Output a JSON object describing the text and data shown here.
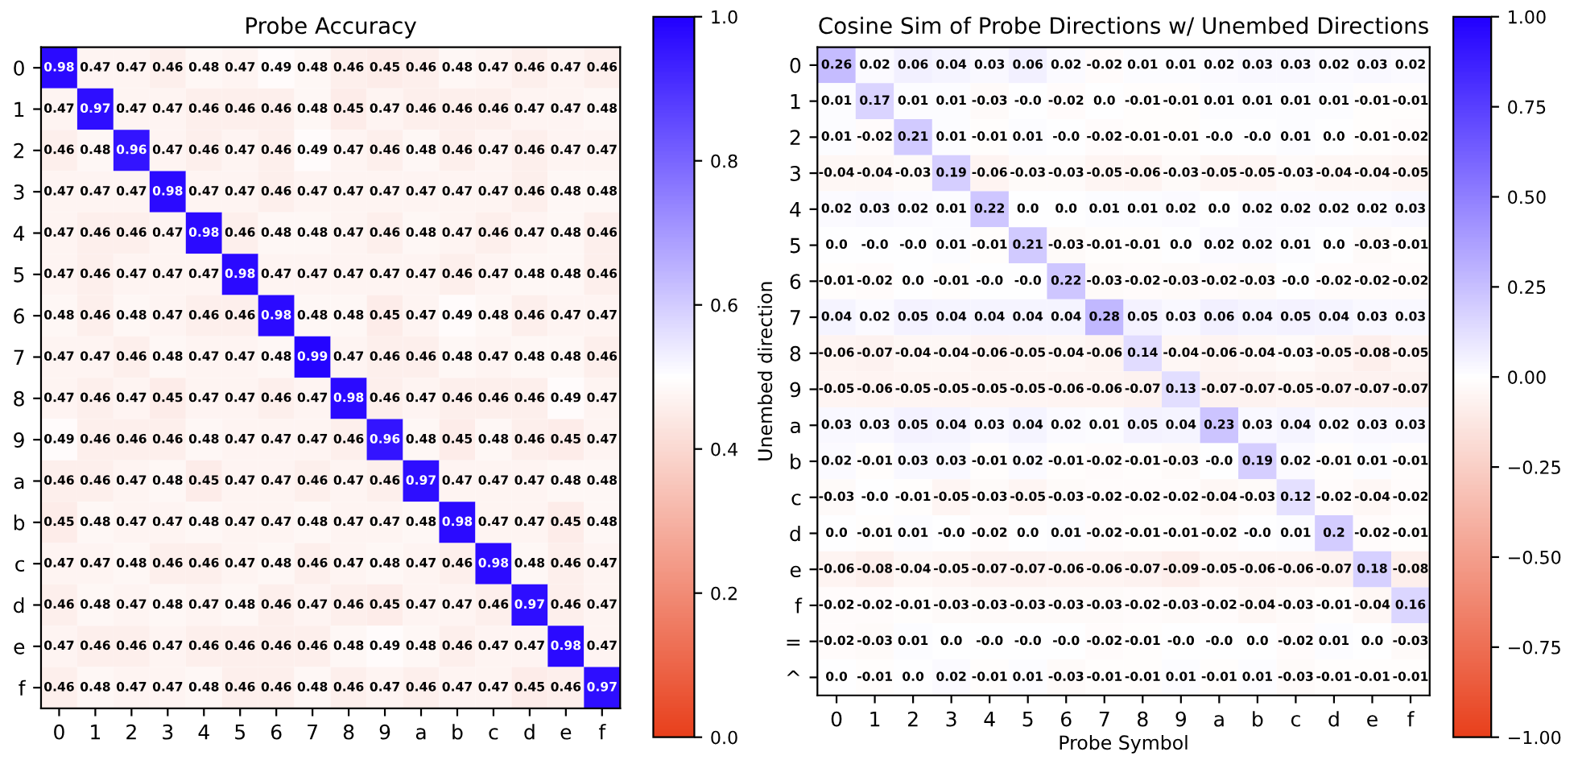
{
  "chart_data": [
    {
      "type": "heatmap",
      "title": "Probe Accuracy",
      "categories": [
        "0",
        "1",
        "2",
        "3",
        "4",
        "5",
        "6",
        "7",
        "8",
        "9",
        "a",
        "b",
        "c",
        "d",
        "e",
        "f"
      ],
      "y_categories": [
        "0",
        "1",
        "2",
        "3",
        "4",
        "5",
        "6",
        "7",
        "8",
        "9",
        "a",
        "b",
        "c",
        "d",
        "e",
        "f"
      ],
      "cells": [
        [
          0.98,
          0.47,
          0.47,
          0.46,
          0.48,
          0.47,
          0.49,
          0.48,
          0.46,
          0.45,
          0.46,
          0.48,
          0.47,
          0.46,
          0.47,
          0.46
        ],
        [
          0.47,
          0.97,
          0.47,
          0.47,
          0.46,
          0.46,
          0.46,
          0.48,
          0.45,
          0.47,
          0.46,
          0.46,
          0.46,
          0.47,
          0.47,
          0.48
        ],
        [
          0.46,
          0.48,
          0.96,
          0.47,
          0.46,
          0.47,
          0.46,
          0.49,
          0.47,
          0.46,
          0.48,
          0.46,
          0.47,
          0.46,
          0.47,
          0.47
        ],
        [
          0.47,
          0.47,
          0.47,
          0.98,
          0.47,
          0.47,
          0.46,
          0.47,
          0.47,
          0.47,
          0.47,
          0.47,
          0.47,
          0.46,
          0.48,
          0.48
        ],
        [
          0.47,
          0.46,
          0.46,
          0.47,
          0.98,
          0.46,
          0.48,
          0.48,
          0.47,
          0.46,
          0.48,
          0.47,
          0.46,
          0.47,
          0.48,
          0.46
        ],
        [
          0.47,
          0.46,
          0.47,
          0.47,
          0.47,
          0.98,
          0.47,
          0.47,
          0.47,
          0.47,
          0.47,
          0.46,
          0.47,
          0.48,
          0.48,
          0.46
        ],
        [
          0.48,
          0.46,
          0.48,
          0.47,
          0.46,
          0.46,
          0.98,
          0.48,
          0.48,
          0.45,
          0.47,
          0.49,
          0.48,
          0.46,
          0.47,
          0.47
        ],
        [
          0.47,
          0.47,
          0.46,
          0.48,
          0.47,
          0.47,
          0.48,
          0.99,
          0.47,
          0.46,
          0.46,
          0.48,
          0.47,
          0.48,
          0.48,
          0.46
        ],
        [
          0.47,
          0.46,
          0.47,
          0.45,
          0.47,
          0.47,
          0.46,
          0.47,
          0.98,
          0.46,
          0.47,
          0.46,
          0.46,
          0.46,
          0.49,
          0.47
        ],
        [
          0.49,
          0.46,
          0.46,
          0.46,
          0.48,
          0.47,
          0.47,
          0.47,
          0.46,
          0.96,
          0.48,
          0.45,
          0.48,
          0.46,
          0.45,
          0.47
        ],
        [
          0.46,
          0.46,
          0.47,
          0.48,
          0.45,
          0.47,
          0.47,
          0.46,
          0.47,
          0.46,
          0.97,
          0.47,
          0.47,
          0.47,
          0.48,
          0.48
        ],
        [
          0.45,
          0.48,
          0.47,
          0.47,
          0.48,
          0.47,
          0.47,
          0.48,
          0.47,
          0.47,
          0.48,
          0.98,
          0.47,
          0.47,
          0.45,
          0.48
        ],
        [
          0.47,
          0.47,
          0.48,
          0.46,
          0.46,
          0.47,
          0.48,
          0.46,
          0.47,
          0.48,
          0.47,
          0.46,
          0.98,
          0.48,
          0.46,
          0.47
        ],
        [
          0.46,
          0.48,
          0.47,
          0.48,
          0.47,
          0.48,
          0.46,
          0.47,
          0.46,
          0.45,
          0.47,
          0.47,
          0.46,
          0.97,
          0.46,
          0.47
        ],
        [
          0.47,
          0.46,
          0.46,
          0.47,
          0.46,
          0.46,
          0.46,
          0.46,
          0.48,
          0.49,
          0.48,
          0.46,
          0.47,
          0.47,
          0.98,
          0.47
        ],
        [
          0.46,
          0.48,
          0.47,
          0.47,
          0.48,
          0.46,
          0.46,
          0.48,
          0.46,
          0.47,
          0.46,
          0.47,
          0.47,
          0.45,
          0.46,
          0.97
        ]
      ],
      "data_labels": true,
      "clim": [
        0,
        1
      ],
      "cticks": [
        {
          "value": 0,
          "label": "0.0"
        },
        {
          "value": 0.2,
          "label": "0.2"
        },
        {
          "value": 0.4,
          "label": "0.4"
        },
        {
          "value": 0.6,
          "label": "0.6"
        },
        {
          "value": 0.8,
          "label": "0.8"
        },
        {
          "value": 1,
          "label": "1.0"
        }
      ]
    },
    {
      "type": "heatmap",
      "title": "Cosine Sim of Probe Directions w/ Unembed Directions",
      "xlabel": "Probe Symbol",
      "ylabel": "Unembed direction",
      "categories": [
        "0",
        "1",
        "2",
        "3",
        "4",
        "5",
        "6",
        "7",
        "8",
        "9",
        "a",
        "b",
        "c",
        "d",
        "e",
        "f"
      ],
      "y_categories": [
        "0",
        "1",
        "2",
        "3",
        "4",
        "5",
        "6",
        "7",
        "8",
        "9",
        "a",
        "b",
        "c",
        "d",
        "e",
        "f",
        "=",
        "^"
      ],
      "cells": [
        [
          0.26,
          0.02,
          0.06,
          0.04,
          0.03,
          0.06,
          0.02,
          -0.02,
          0.01,
          0.01,
          0.02,
          0.03,
          0.03,
          0.02,
          0.03,
          0.02
        ],
        [
          0.01,
          0.17,
          0.01,
          0.01,
          -0.03,
          -0.0,
          -0.02,
          0.0,
          -0.01,
          -0.01,
          0.01,
          0.01,
          0.01,
          0.01,
          -0.01,
          -0.01
        ],
        [
          0.01,
          -0.02,
          0.21,
          0.01,
          -0.01,
          0.01,
          -0.0,
          -0.02,
          -0.01,
          -0.01,
          -0.0,
          -0.0,
          0.01,
          0.0,
          -0.01,
          -0.02
        ],
        [
          -0.04,
          -0.04,
          -0.03,
          0.19,
          -0.06,
          -0.03,
          -0.03,
          -0.05,
          -0.06,
          -0.03,
          -0.05,
          -0.05,
          -0.03,
          -0.04,
          -0.04,
          -0.05
        ],
        [
          0.02,
          0.03,
          0.02,
          0.01,
          0.22,
          0.0,
          0.0,
          0.01,
          0.01,
          0.02,
          0.0,
          0.02,
          0.02,
          0.02,
          0.02,
          0.03
        ],
        [
          0.0,
          -0.0,
          -0.0,
          0.01,
          -0.01,
          0.21,
          -0.03,
          -0.01,
          -0.01,
          0.0,
          0.02,
          0.02,
          0.01,
          0.0,
          -0.03,
          -0.01
        ],
        [
          -0.01,
          -0.02,
          0.0,
          -0.01,
          -0.0,
          -0.0,
          0.22,
          -0.03,
          -0.02,
          -0.03,
          -0.02,
          -0.03,
          -0.0,
          -0.02,
          -0.02,
          -0.02
        ],
        [
          0.04,
          0.02,
          0.05,
          0.04,
          0.04,
          0.04,
          0.04,
          0.28,
          0.05,
          0.03,
          0.06,
          0.04,
          0.05,
          0.04,
          0.03,
          0.03
        ],
        [
          -0.06,
          -0.07,
          -0.04,
          -0.04,
          -0.06,
          -0.05,
          -0.04,
          -0.06,
          0.14,
          -0.04,
          -0.06,
          -0.04,
          -0.03,
          -0.05,
          -0.08,
          -0.05
        ],
        [
          -0.05,
          -0.06,
          -0.05,
          -0.05,
          -0.05,
          -0.05,
          -0.06,
          -0.06,
          -0.07,
          0.13,
          -0.07,
          -0.07,
          -0.05,
          -0.07,
          -0.07,
          -0.07
        ],
        [
          0.03,
          0.03,
          0.05,
          0.04,
          0.03,
          0.04,
          0.02,
          0.01,
          0.05,
          0.04,
          0.23,
          0.03,
          0.04,
          0.02,
          0.03,
          0.03
        ],
        [
          0.02,
          -0.01,
          0.03,
          0.03,
          -0.01,
          0.02,
          -0.01,
          -0.02,
          -0.01,
          -0.03,
          -0.0,
          0.19,
          0.02,
          -0.01,
          0.01,
          -0.01
        ],
        [
          -0.03,
          -0.0,
          -0.01,
          -0.05,
          -0.03,
          -0.05,
          -0.03,
          -0.02,
          -0.02,
          -0.02,
          -0.04,
          -0.03,
          0.12,
          -0.02,
          -0.04,
          -0.02
        ],
        [
          0.0,
          -0.01,
          0.01,
          -0.0,
          -0.02,
          0.0,
          0.01,
          -0.02,
          -0.01,
          -0.01,
          -0.02,
          -0.0,
          0.01,
          0.2,
          -0.02,
          -0.01
        ],
        [
          -0.06,
          -0.08,
          -0.04,
          -0.05,
          -0.07,
          -0.07,
          -0.06,
          -0.06,
          -0.07,
          -0.09,
          -0.05,
          -0.06,
          -0.06,
          -0.07,
          0.18,
          -0.08
        ],
        [
          -0.02,
          -0.02,
          -0.01,
          -0.03,
          -0.03,
          -0.03,
          -0.03,
          -0.03,
          -0.02,
          -0.03,
          -0.02,
          -0.04,
          -0.03,
          -0.01,
          -0.04,
          0.16
        ],
        [
          -0.02,
          -0.03,
          0.01,
          0.0,
          -0.0,
          -0.0,
          -0.0,
          -0.02,
          -0.01,
          -0.0,
          -0.0,
          0.0,
          -0.02,
          0.01,
          0.0,
          -0.03
        ],
        [
          0.0,
          -0.01,
          0.0,
          0.02,
          -0.01,
          0.01,
          -0.03,
          -0.01,
          -0.01,
          0.01,
          -0.01,
          0.01,
          -0.03,
          -0.01,
          -0.01,
          -0.01
        ]
      ],
      "cell_labels": [
        [
          "0.26",
          "0.02",
          "0.06",
          "0.04",
          "0.03",
          "0.06",
          "0.02",
          "-0.02",
          "0.01",
          "0.01",
          "0.02",
          "0.03",
          "0.03",
          "0.02",
          "0.03",
          "0.02"
        ],
        [
          "0.01",
          "0.17",
          "0.01",
          "0.01",
          "-0.03",
          "-0.0",
          "-0.02",
          "0.0",
          "-0.01",
          "-0.01",
          "0.01",
          "0.01",
          "0.01",
          "0.01",
          "-0.01",
          "-0.01"
        ],
        [
          "0.01",
          "-0.02",
          "0.21",
          "0.01",
          "-0.01",
          "0.01",
          "-0.0",
          "-0.02",
          "-0.01",
          "-0.01",
          "-0.0",
          "-0.0",
          "0.01",
          "0.0",
          "-0.01",
          "-0.02"
        ],
        [
          "-0.04",
          "-0.04",
          "-0.03",
          "0.19",
          "-0.06",
          "-0.03",
          "-0.03",
          "-0.05",
          "-0.06",
          "-0.03",
          "-0.05",
          "-0.05",
          "-0.03",
          "-0.04",
          "-0.04",
          "-0.05"
        ],
        [
          "0.02",
          "0.03",
          "0.02",
          "0.01",
          "0.22",
          "0.0",
          "0.0",
          "0.01",
          "0.01",
          "0.02",
          "0.0",
          "0.02",
          "0.02",
          "0.02",
          "0.02",
          "0.03"
        ],
        [
          "0.0",
          "-0.0",
          "-0.0",
          "0.01",
          "-0.01",
          "0.21",
          "-0.03",
          "-0.01",
          "-0.01",
          "0.0",
          "0.02",
          "0.02",
          "0.01",
          "0.0",
          "-0.03",
          "-0.01"
        ],
        [
          "-0.01",
          "-0.02",
          "0.0",
          "-0.01",
          "-0.0",
          "-0.0",
          "0.22",
          "-0.03",
          "-0.02",
          "-0.03",
          "-0.02",
          "-0.03",
          "-0.0",
          "-0.02",
          "-0.02",
          "-0.02"
        ],
        [
          "0.04",
          "0.02",
          "0.05",
          "0.04",
          "0.04",
          "0.04",
          "0.04",
          "0.28",
          "0.05",
          "0.03",
          "0.06",
          "0.04",
          "0.05",
          "0.04",
          "0.03",
          "0.03"
        ],
        [
          "-0.06",
          "-0.07",
          "-0.04",
          "-0.04",
          "-0.06",
          "-0.05",
          "-0.04",
          "-0.06",
          "0.14",
          "-0.04",
          "-0.06",
          "-0.04",
          "-0.03",
          "-0.05",
          "-0.08",
          "-0.05"
        ],
        [
          "-0.05",
          "-0.06",
          "-0.05",
          "-0.05",
          "-0.05",
          "-0.05",
          "-0.06",
          "-0.06",
          "-0.07",
          "0.13",
          "-0.07",
          "-0.07",
          "-0.05",
          "-0.07",
          "-0.07",
          "-0.07"
        ],
        [
          "0.03",
          "0.03",
          "0.05",
          "0.04",
          "0.03",
          "0.04",
          "0.02",
          "0.01",
          "0.05",
          "0.04",
          "0.23",
          "0.03",
          "0.04",
          "0.02",
          "0.03",
          "0.03"
        ],
        [
          "0.02",
          "-0.01",
          "0.03",
          "0.03",
          "-0.01",
          "0.02",
          "-0.01",
          "-0.02",
          "-0.01",
          "-0.03",
          "-0.0",
          "0.19",
          "0.02",
          "-0.01",
          "0.01",
          "-0.01"
        ],
        [
          "-0.03",
          "-0.0",
          "-0.01",
          "-0.05",
          "-0.03",
          "-0.05",
          "-0.03",
          "-0.02",
          "-0.02",
          "-0.02",
          "-0.04",
          "-0.03",
          "0.12",
          "-0.02",
          "-0.04",
          "-0.02"
        ],
        [
          "0.0",
          "-0.01",
          "0.01",
          "-0.0",
          "-0.02",
          "0.0",
          "0.01",
          "-0.02",
          "-0.01",
          "-0.01",
          "-0.02",
          "-0.0",
          "0.01",
          "0.2",
          "-0.02",
          "-0.01"
        ],
        [
          "-0.06",
          "-0.08",
          "-0.04",
          "-0.05",
          "-0.07",
          "-0.07",
          "-0.06",
          "-0.06",
          "-0.07",
          "-0.09",
          "-0.05",
          "-0.06",
          "-0.06",
          "-0.07",
          "0.18",
          "-0.08"
        ],
        [
          "-0.02",
          "-0.02",
          "-0.01",
          "-0.03",
          "-0.03",
          "-0.03",
          "-0.03",
          "-0.03",
          "-0.02",
          "-0.03",
          "-0.02",
          "-0.04",
          "-0.03",
          "-0.01",
          "-0.04",
          "0.16"
        ],
        [
          "-0.02",
          "-0.03",
          "0.01",
          "0.0",
          "-0.0",
          "-0.0",
          "-0.0",
          "-0.02",
          "-0.01",
          "-0.0",
          "-0.0",
          "0.0",
          "-0.02",
          "0.01",
          "0.0",
          "-0.03"
        ],
        [
          "0.0",
          "-0.01",
          "0.0",
          "0.02",
          "-0.01",
          "0.01",
          "-0.03",
          "-0.01",
          "-0.01",
          "0.01",
          "-0.01",
          "0.01",
          "-0.03",
          "-0.01",
          "-0.01",
          "-0.01"
        ]
      ],
      "data_labels": true,
      "clim": [
        -1,
        1
      ],
      "cticks": [
        {
          "value": -1,
          "label": "−1.00"
        },
        {
          "value": -0.75,
          "label": "−0.75"
        },
        {
          "value": -0.5,
          "label": "−0.50"
        },
        {
          "value": -0.25,
          "label": "−0.25"
        },
        {
          "value": 0,
          "label": "0.00"
        },
        {
          "value": 0.25,
          "label": "0.25"
        },
        {
          "value": 0.5,
          "label": "0.50"
        },
        {
          "value": 0.75,
          "label": "0.75"
        },
        {
          "value": 1,
          "label": "1.00"
        }
      ]
    }
  ]
}
